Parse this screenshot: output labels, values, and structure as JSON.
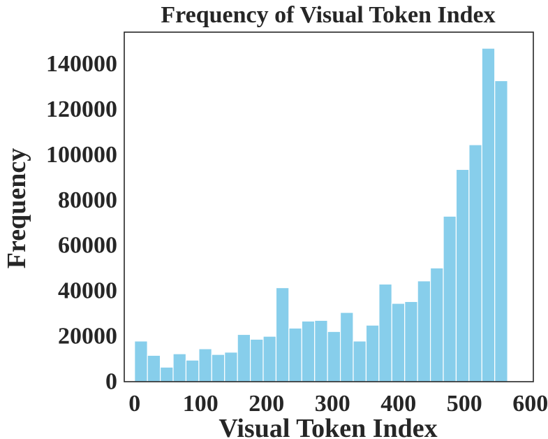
{
  "chart_data": {
    "type": "bar",
    "title": "Frequency of Visual Token Index",
    "xlabel": "Visual Token Index",
    "ylabel": "Frequency",
    "bin_width": 19.5,
    "x_start": 0,
    "xlim": [
      -15.6,
      604.5
    ],
    "ylim": [
      0,
      154000
    ],
    "xticks": [
      0,
      100,
      200,
      300,
      400,
      500,
      600
    ],
    "yticks": [
      0,
      20000,
      40000,
      60000,
      80000,
      100000,
      120000,
      140000
    ],
    "grid": false,
    "values": [
      17900,
      11600,
      6400,
      12300,
      9500,
      14500,
      12000,
      13000,
      20800,
      18700,
      20000,
      41400,
      23600,
      26700,
      27000,
      22100,
      30500,
      17900,
      24900,
      43000,
      34500,
      35300,
      44400,
      50100,
      72900,
      93500,
      104400,
      146900,
      132600
    ],
    "bar_color": "#87ceeb",
    "bar_edge_color": "#ffffff"
  }
}
